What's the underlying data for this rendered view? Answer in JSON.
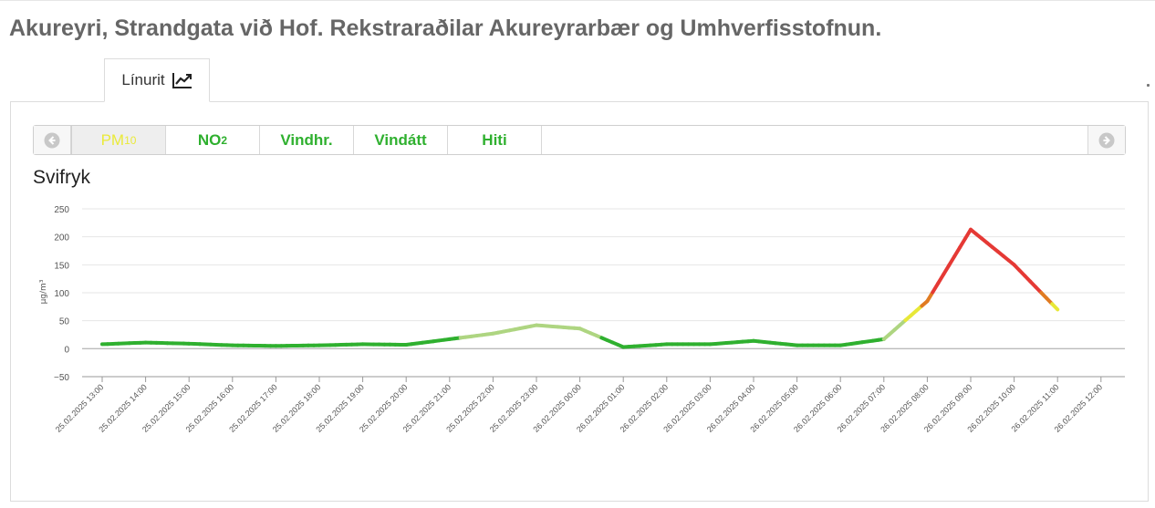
{
  "page": {
    "title": "Akureyri, Strandgata við Hof. Rekstraraðilar Akureyrarbær og Umhverfisstofnun."
  },
  "view_tabs": [
    {
      "label": "Línurit",
      "icon": "line-chart-icon",
      "active": true
    }
  ],
  "pollutant_tabs": [
    {
      "label": "PM",
      "sub": "10",
      "active": true
    },
    {
      "label": "NO",
      "sub": "2",
      "active": false
    },
    {
      "label": "Vindhr.",
      "sub": "",
      "active": false
    },
    {
      "label": "Vindátt",
      "sub": "",
      "active": false
    },
    {
      "label": "Hiti",
      "sub": "",
      "active": false
    }
  ],
  "nav": {
    "prev_icon": "arrow-circle-left-icon",
    "next_icon": "arrow-circle-right-icon"
  },
  "colors": {
    "good": "#2fb02f",
    "light_green": "#aed581",
    "yellow": "#e8e838",
    "orange": "#e07b22",
    "red": "#e53935",
    "axis": "#999999",
    "grid": "#e6e6e6",
    "tab_text": "#2fb02f",
    "active_tab_text": "#eaea3a"
  },
  "chart_data": {
    "type": "line",
    "title": "Svifryk",
    "xlabel": "",
    "ylabel": "µg/m³",
    "ylim": [
      -50,
      250
    ],
    "yticks": [
      -50,
      0,
      50,
      100,
      150,
      200,
      250
    ],
    "grid": true,
    "categories": [
      "25.02.2025 13:00",
      "25.02.2025 14:00",
      "25.02.2025 15:00",
      "25.02.2025 16:00",
      "25.02.2025 17:00",
      "25.02.2025 18:00",
      "25.02.2025 19:00",
      "25.02.2025 20:00",
      "25.02.2025 21:00",
      "25.02.2025 22:00",
      "25.02.2025 23:00",
      "26.02.2025 00:00",
      "26.02.2025 01:00",
      "26.02.2025 02:00",
      "26.02.2025 03:00",
      "26.02.2025 04:00",
      "26.02.2025 05:00",
      "26.02.2025 06:00",
      "26.02.2025 07:00",
      "26.02.2025 08:00",
      "26.02.2025 09:00",
      "26.02.2025 10:00",
      "26.02.2025 11:00",
      "26.02.2025 12:00"
    ],
    "series": [
      {
        "values": [
          8,
          11,
          9,
          6,
          5,
          6,
          8,
          7,
          17,
          27,
          42,
          36,
          3,
          8,
          8,
          14,
          6,
          6,
          17,
          85,
          213,
          150,
          70,
          null
        ]
      }
    ]
  }
}
